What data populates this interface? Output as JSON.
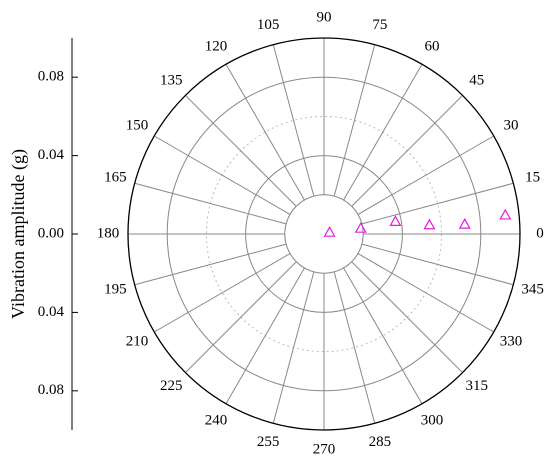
{
  "chart_data": {
    "type": "polar",
    "ylabel": "Vibration amplitude (g)",
    "thetaticks": [
      0,
      15,
      30,
      45,
      60,
      75,
      90,
      105,
      120,
      135,
      150,
      165,
      180,
      195,
      210,
      225,
      240,
      255,
      270,
      285,
      300,
      315,
      330,
      345
    ],
    "rlim": [
      0,
      0.1
    ],
    "rticks": [
      {
        "value": 0,
        "label": "0.00"
      },
      {
        "value": 0.04,
        "label": "0.04"
      },
      {
        "value": 0.08,
        "label": "0.08"
      }
    ],
    "minor_rticks": [
      0.02,
      0.06
    ],
    "grid": true,
    "series": [
      {
        "color": "#e020e0",
        "theta": [
          18,
          9,
          10,
          5,
          4,
          6
        ],
        "values": [
          0.003,
          0.019,
          0.037,
          0.054,
          0.072,
          0.093
        ]
      }
    ]
  }
}
